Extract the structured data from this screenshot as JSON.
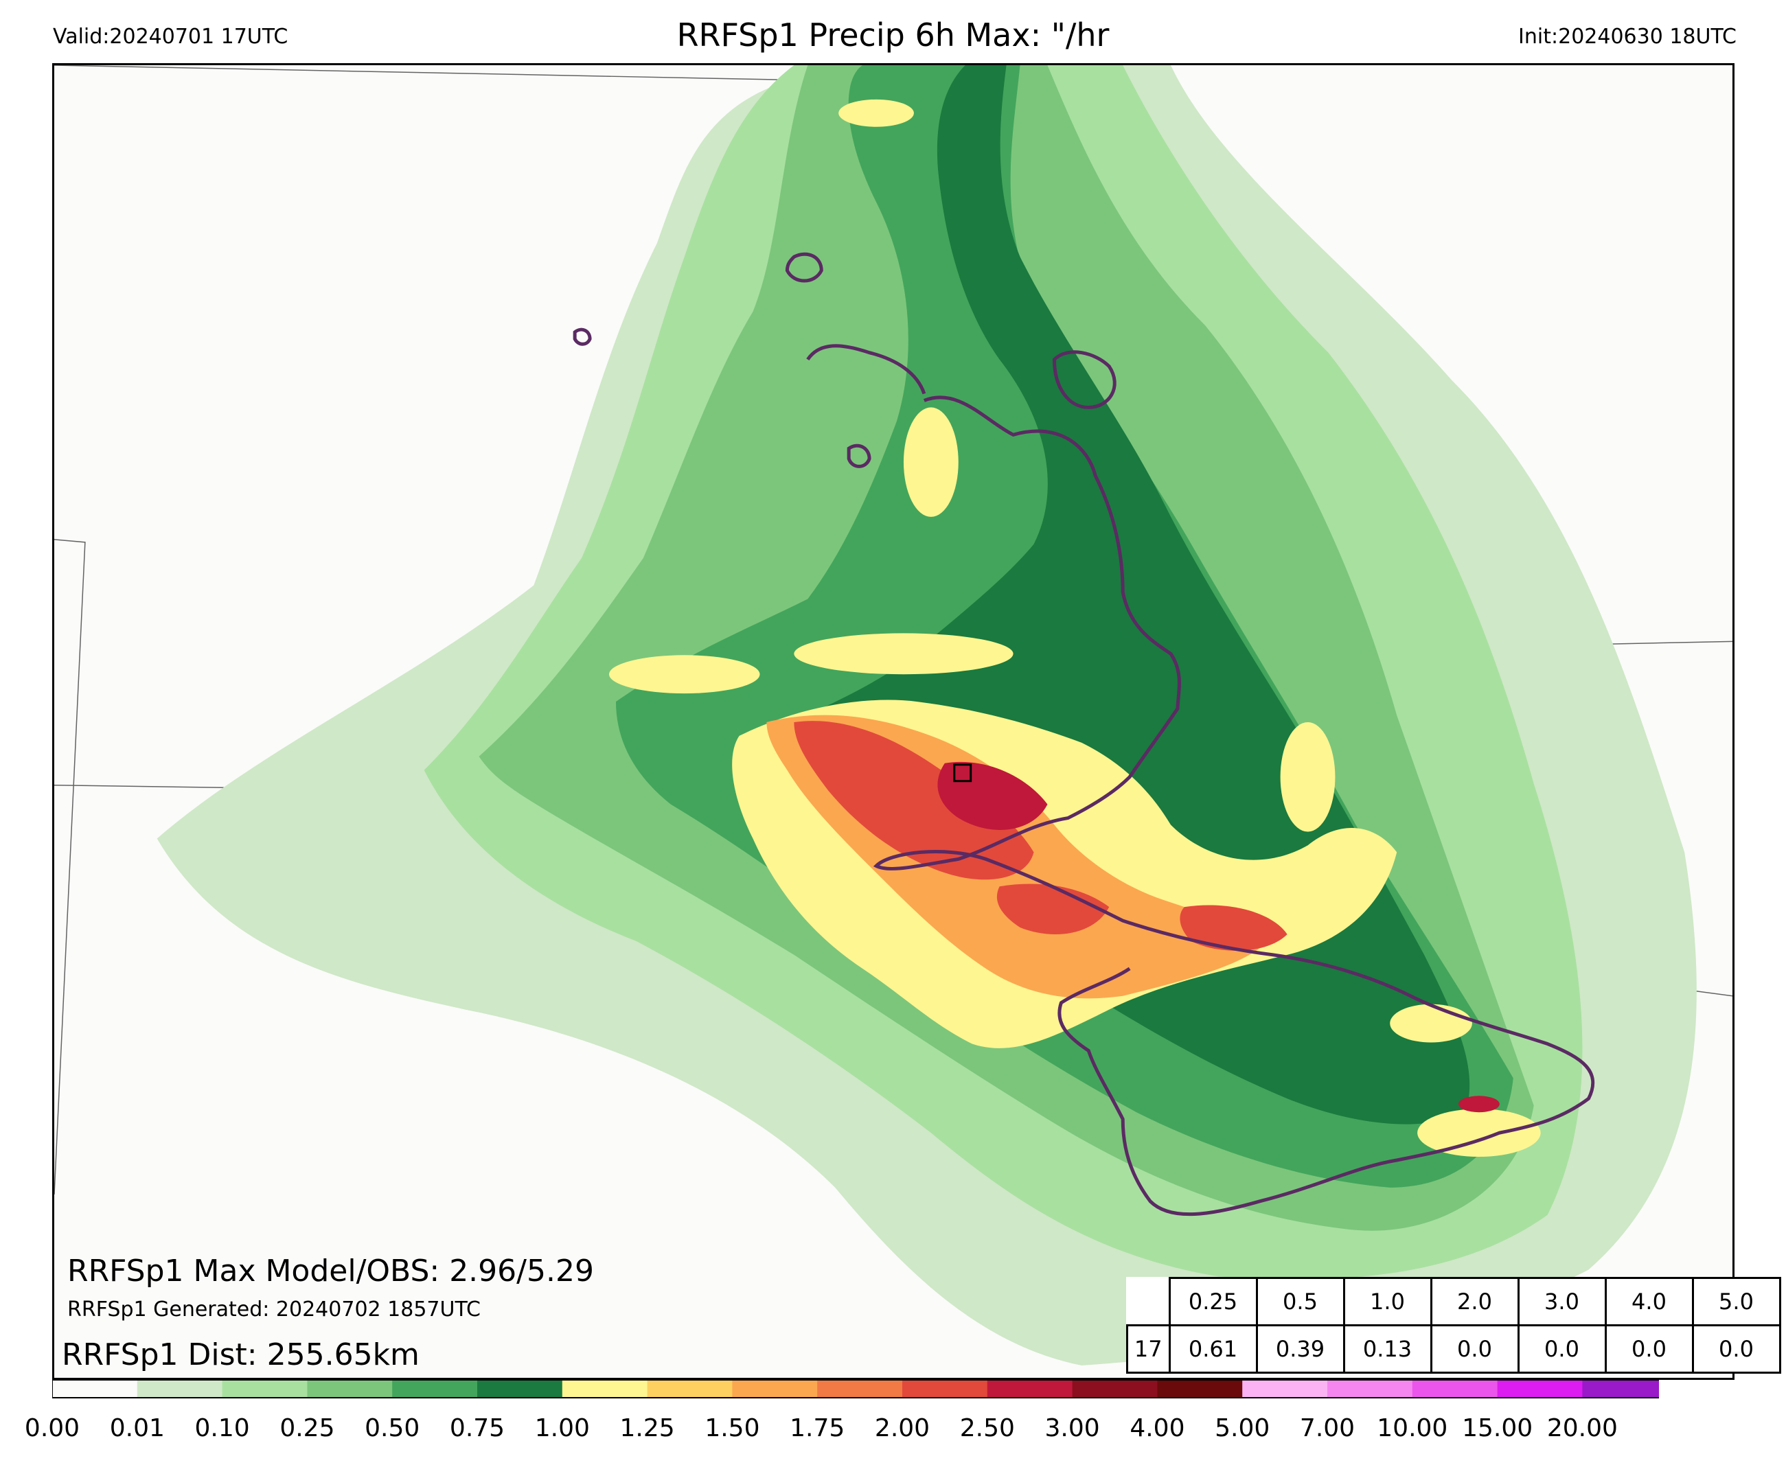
{
  "header": {
    "valid": "Valid:20240701 17UTC",
    "title": "RRFSp1 Precip 6h Max: \"/hr",
    "init": "Init:20240630 18UTC"
  },
  "stats": {
    "max_line": "RRFSp1 Max Model/OBS: 2.96/5.29",
    "generated_line": "RRFSp1 Generated: 20240702 1857UTC",
    "dist_line": "RRFSp1 Dist: 255.65km"
  },
  "threshold_table": {
    "thresholds": [
      "0.25",
      "0.5",
      "1.0",
      "2.0",
      "3.0",
      "4.0",
      "5.0"
    ],
    "row_label": "17",
    "values": [
      "0.61",
      "0.39",
      "0.13",
      "0.0",
      "0.0",
      "0.0",
      "0.0"
    ]
  },
  "colorbar": {
    "labels": [
      "0.00",
      "0.01",
      "0.10",
      "0.25",
      "0.50",
      "0.75",
      "1.00",
      "1.25",
      "1.50",
      "1.75",
      "2.00",
      "2.50",
      "3.00",
      "4.00",
      "5.00",
      "7.00",
      "10.00",
      "15.00",
      "20.00"
    ],
    "colors": [
      "#fbfbfa",
      "#cfe8c7",
      "#a8e0a0",
      "#7cc67c",
      "#43a55c",
      "#1a7a3f",
      "#fef691",
      "#fdd060",
      "#fba750",
      "#f17a45",
      "#e2493b",
      "#c0183a",
      "#8b0f1f",
      "#6a0a0a",
      "#fbb3f4",
      "#f586f0",
      "#ec55ec",
      "#dc1cf0",
      "#9a19c8"
    ]
  }
}
